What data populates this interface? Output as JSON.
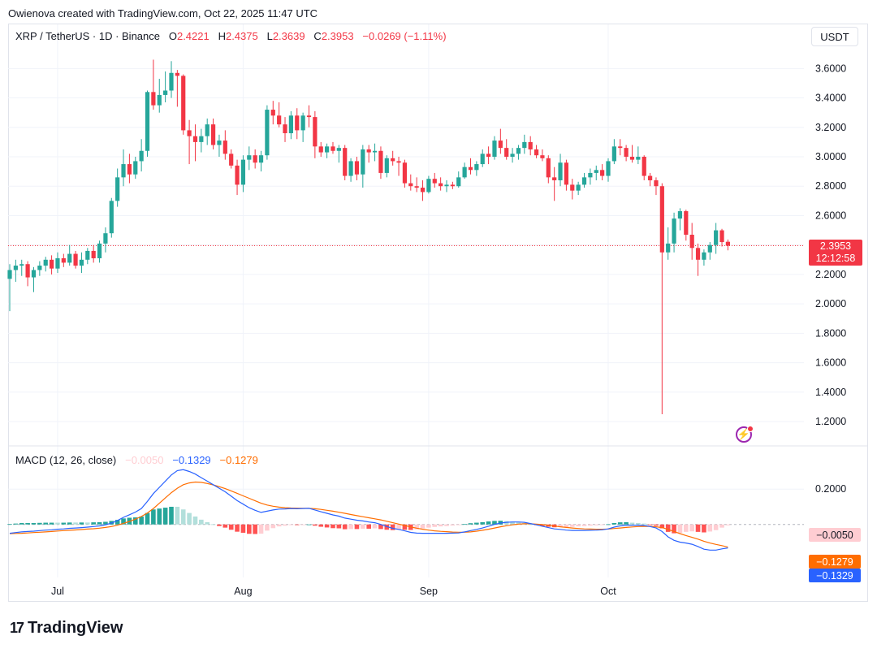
{
  "header": {
    "caption": "Owienova created with TradingView.com, Oct 22, 2025 11:47 UTC"
  },
  "legend": {
    "symbol": "XRP / TetherUS · 1D · Binance",
    "open_label": "O",
    "open": "2.4221",
    "high_label": "H",
    "high": "2.4375",
    "low_label": "L",
    "low": "2.3639",
    "close_label": "C",
    "close": "2.3953",
    "change": "−0.0269 (−1.11%)"
  },
  "currency": "USDT",
  "price_tag": {
    "price": "2.3953",
    "countdown": "12:12:58"
  },
  "macd_legend": {
    "label": "MACD (12, 26, close)",
    "hist": "−0.0050",
    "macd": "−0.1329",
    "signal": "−0.1279"
  },
  "macd_tags": {
    "hist": "−0.0050",
    "signal": "−0.1279",
    "macd": "−0.1329"
  },
  "brand": {
    "logo": "17",
    "name": "TradingView"
  },
  "colors": {
    "up": "#26a69a",
    "down": "#f23645",
    "macd_line": "#2962ff",
    "signal_line": "#ff6d00",
    "hist_up_strong": "#26a69a",
    "hist_up_weak": "#b2dfdb",
    "hist_down_strong": "#ff5252",
    "hist_down_weak": "#ffcdd2",
    "grid": "#f0f3fa"
  },
  "chart_data": [
    {
      "type": "candlestick",
      "title": "XRP / TetherUS · 1D · Binance",
      "y_ticks": [
        "3.6000",
        "3.4000",
        "3.2000",
        "3.0000",
        "2.8000",
        "2.6000",
        "2.4000",
        "2.2000",
        "2.0000",
        "1.8000",
        "1.6000",
        "1.4000",
        "1.2000"
      ],
      "ylim": [
        1.04,
        3.9
      ],
      "x_ticks": [
        {
          "label": "Jul",
          "bar": 8
        },
        {
          "label": "Aug",
          "bar": 39
        },
        {
          "label": "Sep",
          "bar": 70
        },
        {
          "label": "Oct",
          "bar": 100
        }
      ],
      "last_price": 2.3953,
      "candles": [
        [
          2.17,
          2.27,
          1.95,
          2.23
        ],
        [
          2.23,
          2.3,
          2.15,
          2.26
        ],
        [
          2.26,
          2.3,
          2.19,
          2.27
        ],
        [
          2.27,
          2.29,
          2.12,
          2.18
        ],
        [
          2.18,
          2.25,
          2.08,
          2.23
        ],
        [
          2.23,
          2.29,
          2.19,
          2.26
        ],
        [
          2.26,
          2.32,
          2.22,
          2.3
        ],
        [
          2.3,
          2.33,
          2.2,
          2.24
        ],
        [
          2.24,
          2.35,
          2.21,
          2.31
        ],
        [
          2.31,
          2.34,
          2.25,
          2.28
        ],
        [
          2.28,
          2.4,
          2.26,
          2.34
        ],
        [
          2.34,
          2.36,
          2.24,
          2.26
        ],
        [
          2.26,
          2.35,
          2.21,
          2.3
        ],
        [
          2.3,
          2.38,
          2.27,
          2.36
        ],
        [
          2.36,
          2.4,
          2.28,
          2.31
        ],
        [
          2.31,
          2.43,
          2.28,
          2.41
        ],
        [
          2.41,
          2.52,
          2.35,
          2.48
        ],
        [
          2.48,
          2.72,
          2.45,
          2.7
        ],
        [
          2.7,
          2.92,
          2.66,
          2.86
        ],
        [
          2.86,
          3.05,
          2.8,
          2.95
        ],
        [
          2.95,
          3.02,
          2.82,
          2.88
        ],
        [
          2.88,
          3.0,
          2.85,
          2.97
        ],
        [
          2.97,
          3.12,
          2.9,
          3.04
        ],
        [
          3.04,
          3.45,
          3.0,
          3.44
        ],
        [
          3.44,
          3.66,
          3.32,
          3.35
        ],
        [
          3.35,
          3.53,
          3.3,
          3.42
        ],
        [
          3.42,
          3.58,
          3.37,
          3.45
        ],
        [
          3.45,
          3.65,
          3.4,
          3.57
        ],
        [
          3.57,
          3.59,
          3.34,
          3.55
        ],
        [
          3.55,
          3.56,
          3.15,
          3.18
        ],
        [
          3.18,
          3.25,
          2.95,
          3.14
        ],
        [
          3.14,
          3.22,
          2.97,
          3.1
        ],
        [
          3.1,
          3.19,
          3.03,
          3.14
        ],
        [
          3.14,
          3.26,
          3.08,
          3.22
        ],
        [
          3.22,
          3.26,
          3.05,
          3.08
        ],
        [
          3.08,
          3.15,
          3.0,
          3.11
        ],
        [
          3.11,
          3.18,
          2.98,
          3.02
        ],
        [
          3.02,
          3.05,
          2.92,
          2.94
        ],
        [
          2.94,
          2.98,
          2.74,
          2.81
        ],
        [
          2.81,
          3.01,
          2.76,
          2.98
        ],
        [
          2.98,
          3.07,
          2.91,
          3.01
        ],
        [
          3.01,
          3.05,
          2.92,
          2.96
        ],
        [
          2.96,
          3.04,
          2.9,
          3.01
        ],
        [
          3.01,
          3.35,
          2.98,
          3.32
        ],
        [
          3.32,
          3.38,
          3.22,
          3.28
        ],
        [
          3.28,
          3.37,
          3.2,
          3.22
        ],
        [
          3.22,
          3.27,
          3.1,
          3.16
        ],
        [
          3.16,
          3.31,
          3.12,
          3.28
        ],
        [
          3.28,
          3.33,
          3.12,
          3.18
        ],
        [
          3.18,
          3.3,
          3.1,
          3.28
        ],
        [
          3.28,
          3.35,
          3.2,
          3.27
        ],
        [
          3.27,
          3.31,
          2.99,
          3.07
        ],
        [
          3.07,
          3.1,
          3.0,
          3.03
        ],
        [
          3.03,
          3.09,
          2.99,
          3.07
        ],
        [
          3.07,
          3.1,
          3.02,
          3.04
        ],
        [
          3.04,
          3.08,
          2.96,
          3.06
        ],
        [
          3.06,
          3.08,
          2.84,
          2.87
        ],
        [
          2.87,
          2.99,
          2.83,
          2.97
        ],
        [
          2.97,
          3.0,
          2.84,
          2.88
        ],
        [
          2.88,
          3.08,
          2.79,
          3.05
        ],
        [
          3.05,
          3.08,
          2.96,
          3.03
        ],
        [
          3.03,
          3.09,
          2.97,
          3.04
        ],
        [
          3.04,
          3.07,
          2.85,
          2.89
        ],
        [
          2.89,
          3.01,
          2.86,
          2.99
        ],
        [
          2.99,
          3.04,
          2.94,
          2.97
        ],
        [
          2.97,
          3.0,
          2.87,
          2.96
        ],
        [
          2.96,
          2.98,
          2.79,
          2.82
        ],
        [
          2.82,
          2.88,
          2.77,
          2.8
        ],
        [
          2.8,
          2.86,
          2.76,
          2.79
        ],
        [
          2.79,
          2.84,
          2.7,
          2.76
        ],
        [
          2.76,
          2.87,
          2.75,
          2.85
        ],
        [
          2.85,
          2.89,
          2.79,
          2.82
        ],
        [
          2.82,
          2.86,
          2.77,
          2.8
        ],
        [
          2.8,
          2.84,
          2.76,
          2.81
        ],
        [
          2.81,
          2.83,
          2.78,
          2.8
        ],
        [
          2.8,
          2.9,
          2.79,
          2.86
        ],
        [
          2.86,
          2.96,
          2.85,
          2.93
        ],
        [
          2.93,
          2.99,
          2.88,
          2.91
        ],
        [
          2.91,
          2.97,
          2.87,
          2.95
        ],
        [
          2.95,
          3.05,
          2.93,
          3.02
        ],
        [
          3.02,
          3.07,
          2.95,
          3.0
        ],
        [
          3.0,
          3.14,
          2.98,
          3.11
        ],
        [
          3.11,
          3.19,
          3.02,
          3.06
        ],
        [
          3.06,
          3.12,
          2.98,
          3.0
        ],
        [
          3.0,
          3.06,
          2.96,
          3.02
        ],
        [
          3.02,
          3.08,
          2.98,
          3.06
        ],
        [
          3.06,
          3.15,
          3.02,
          3.1
        ],
        [
          3.1,
          3.14,
          3.01,
          3.05
        ],
        [
          3.05,
          3.08,
          2.99,
          3.01
        ],
        [
          3.01,
          3.05,
          2.97,
          2.99
        ],
        [
          2.99,
          3.01,
          2.82,
          2.86
        ],
        [
          2.86,
          2.93,
          2.7,
          2.84
        ],
        [
          2.84,
          3.02,
          2.8,
          2.96
        ],
        [
          2.96,
          2.98,
          2.77,
          2.81
        ],
        [
          2.81,
          2.85,
          2.71,
          2.77
        ],
        [
          2.77,
          2.83,
          2.74,
          2.81
        ],
        [
          2.81,
          2.89,
          2.79,
          2.86
        ],
        [
          2.86,
          2.92,
          2.81,
          2.89
        ],
        [
          2.89,
          2.94,
          2.84,
          2.91
        ],
        [
          2.91,
          2.95,
          2.84,
          2.87
        ],
        [
          2.87,
          2.99,
          2.83,
          2.97
        ],
        [
          2.97,
          3.12,
          2.95,
          3.07
        ],
        [
          3.07,
          3.12,
          3.01,
          3.06
        ],
        [
          3.06,
          3.08,
          2.97,
          3.0
        ],
        [
          3.0,
          3.08,
          2.96,
          2.98
        ],
        [
          2.98,
          3.07,
          2.95,
          3.0
        ],
        [
          3.0,
          3.01,
          2.84,
          2.87
        ],
        [
          2.87,
          2.89,
          2.8,
          2.84
        ],
        [
          2.84,
          2.86,
          2.74,
          2.8
        ],
        [
          2.8,
          2.82,
          1.25,
          2.35
        ],
        [
          2.35,
          2.52,
          2.3,
          2.41
        ],
        [
          2.41,
          2.62,
          2.35,
          2.58
        ],
        [
          2.58,
          2.65,
          2.5,
          2.63
        ],
        [
          2.63,
          2.64,
          2.43,
          2.47
        ],
        [
          2.47,
          2.55,
          2.3,
          2.38
        ],
        [
          2.38,
          2.41,
          2.19,
          2.3
        ],
        [
          2.3,
          2.37,
          2.26,
          2.35
        ],
        [
          2.35,
          2.42,
          2.3,
          2.4
        ],
        [
          2.4,
          2.55,
          2.34,
          2.5
        ],
        [
          2.5,
          2.51,
          2.39,
          2.42
        ],
        [
          2.4221,
          2.4375,
          2.3639,
          2.3953
        ]
      ]
    },
    {
      "type": "macd",
      "title": "MACD (12, 26, close)",
      "y_ticks": [
        "0.2000"
      ],
      "ylim": [
        -0.3,
        0.44
      ],
      "macd": [
        -0.05,
        -0.046,
        -0.042,
        -0.04,
        -0.038,
        -0.035,
        -0.032,
        -0.03,
        -0.027,
        -0.025,
        -0.022,
        -0.02,
        -0.018,
        -0.015,
        -0.012,
        -0.008,
        -0.002,
        0.008,
        0.022,
        0.04,
        0.055,
        0.07,
        0.09,
        0.13,
        0.175,
        0.21,
        0.245,
        0.28,
        0.305,
        0.31,
        0.3,
        0.285,
        0.265,
        0.245,
        0.225,
        0.205,
        0.185,
        0.16,
        0.135,
        0.115,
        0.095,
        0.08,
        0.068,
        0.075,
        0.082,
        0.087,
        0.088,
        0.09,
        0.089,
        0.09,
        0.091,
        0.082,
        0.072,
        0.063,
        0.054,
        0.047,
        0.036,
        0.03,
        0.024,
        0.02,
        0.014,
        0.01,
        0.0,
        -0.012,
        -0.022,
        -0.028,
        -0.036,
        -0.045,
        -0.049,
        -0.05,
        -0.05,
        -0.05,
        -0.05,
        -0.05,
        -0.049,
        -0.048,
        -0.042,
        -0.035,
        -0.028,
        -0.02,
        -0.01,
        0.0,
        0.008,
        0.012,
        0.014,
        0.014,
        0.012,
        0.005,
        -0.002,
        -0.01,
        -0.018,
        -0.025,
        -0.028,
        -0.032,
        -0.034,
        -0.034,
        -0.034,
        -0.033,
        -0.032,
        -0.03,
        -0.025,
        -0.015,
        -0.008,
        -0.004,
        -0.004,
        -0.004,
        -0.006,
        -0.012,
        -0.02,
        -0.04,
        -0.07,
        -0.09,
        -0.1,
        -0.105,
        -0.112,
        -0.125,
        -0.14,
        -0.145,
        -0.145,
        -0.138,
        -0.1329
      ],
      "signal": [
        -0.052,
        -0.051,
        -0.05,
        -0.048,
        -0.046,
        -0.044,
        -0.042,
        -0.04,
        -0.037,
        -0.035,
        -0.033,
        -0.031,
        -0.029,
        -0.026,
        -0.024,
        -0.021,
        -0.017,
        -0.012,
        -0.004,
        0.006,
        0.017,
        0.03,
        0.045,
        0.065,
        0.09,
        0.12,
        0.15,
        0.18,
        0.205,
        0.225,
        0.235,
        0.24,
        0.238,
        0.232,
        0.224,
        0.214,
        0.203,
        0.19,
        0.176,
        0.162,
        0.148,
        0.134,
        0.12,
        0.11,
        0.103,
        0.098,
        0.095,
        0.093,
        0.092,
        0.091,
        0.091,
        0.089,
        0.085,
        0.08,
        0.075,
        0.069,
        0.063,
        0.056,
        0.05,
        0.044,
        0.038,
        0.032,
        0.026,
        0.018,
        0.01,
        0.002,
        -0.006,
        -0.014,
        -0.021,
        -0.027,
        -0.032,
        -0.036,
        -0.039,
        -0.041,
        -0.043,
        -0.044,
        -0.044,
        -0.042,
        -0.038,
        -0.033,
        -0.027,
        -0.02,
        -0.013,
        -0.007,
        -0.002,
        0.002,
        0.004,
        0.004,
        0.002,
        -0.001,
        -0.005,
        -0.009,
        -0.013,
        -0.017,
        -0.02,
        -0.023,
        -0.025,
        -0.026,
        -0.027,
        -0.027,
        -0.026,
        -0.023,
        -0.02,
        -0.017,
        -0.014,
        -0.012,
        -0.011,
        -0.011,
        -0.013,
        -0.018,
        -0.028,
        -0.04,
        -0.052,
        -0.063,
        -0.073,
        -0.083,
        -0.095,
        -0.105,
        -0.113,
        -0.12,
        -0.1279
      ]
    }
  ]
}
